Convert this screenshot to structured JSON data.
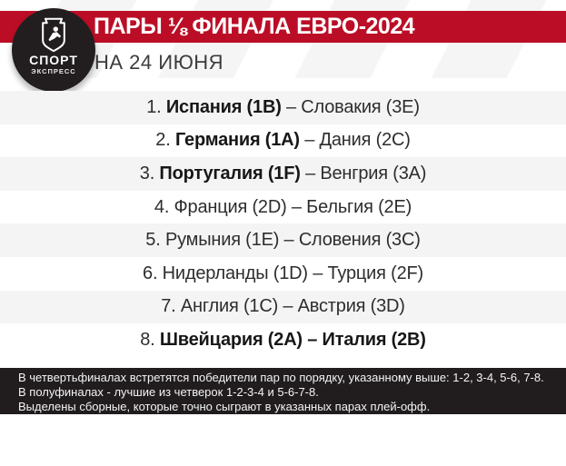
{
  "header": {
    "title": "ПАРЫ ⅛ ФИНАЛА ЕВРО-2024",
    "subtitle": "НА 24 ИЮНЯ",
    "logo_line1": "СПОРТ",
    "logo_line2": "ЭКСПРЕСС",
    "accent_color": "#bb0e26",
    "footer_color": "#211d1e",
    "row_stripe_color": "#f4f4f4"
  },
  "pairs": [
    {
      "num": "1.",
      "home": "Испания (1B)",
      "separator": "–",
      "away": "Словакия (3E)",
      "home_bold": true,
      "away_bold": false
    },
    {
      "num": "2.",
      "home": "Германия (1A)",
      "separator": "–",
      "away": "Дания (2C)",
      "home_bold": true,
      "away_bold": false
    },
    {
      "num": "3.",
      "home": "Португалия (1F)",
      "separator": "–",
      "away": "Венгрия (3A)",
      "home_bold": true,
      "away_bold": false
    },
    {
      "num": "4.",
      "home": "Франция (2D)",
      "separator": "–",
      "away": "Бельгия (2E)",
      "home_bold": false,
      "away_bold": false
    },
    {
      "num": "5.",
      "home": "Румыния (1E)",
      "separator": "–",
      "away": "Словения (3C)",
      "home_bold": false,
      "away_bold": false
    },
    {
      "num": "6.",
      "home": "Нидерланды (1D)",
      "separator": "–",
      "away": "Турция (2F)",
      "home_bold": false,
      "away_bold": false
    },
    {
      "num": "7.",
      "home": "Англия (1C)",
      "separator": "–",
      "away": "Австрия (3D)",
      "home_bold": false,
      "away_bold": false
    },
    {
      "num": "8.",
      "home": "Швейцария (2A)",
      "separator": "–",
      "away": "Италия (2B)",
      "home_bold": true,
      "away_bold": true
    }
  ],
  "footer": {
    "lines": [
      "В четвертьфиналах встретятся победители пар по порядку, указанному выше: 1-2, 3-4, 5-6, 7-8.",
      "В полуфиналах - лучшие из четверок 1-2-3-4 и 5-6-7-8.",
      "Выделены сборные, которые точно сыграют в указанных парах плей-офф."
    ]
  }
}
